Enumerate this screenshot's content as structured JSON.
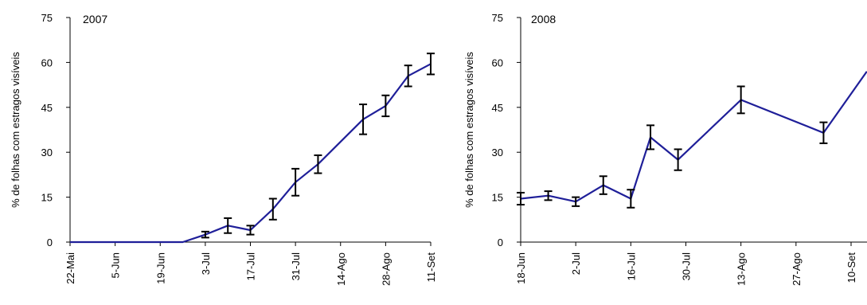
{
  "chart_data": [
    {
      "type": "line",
      "title": "",
      "annotation": "2007",
      "xlabel": "",
      "ylabel": "% de folhas com estragos visíveis",
      "ylim": [
        0,
        75
      ],
      "yticks": [
        0,
        15,
        30,
        45,
        60,
        75
      ],
      "xticks": [
        "22-Mai",
        "5-Jun",
        "19-Jun",
        "3-Jul",
        "17-Jul",
        "31-Jul",
        "14-Ago",
        "28-Ago",
        "11-Set"
      ],
      "grid": false,
      "series_color": "#1f1f99",
      "series": [
        {
          "x": [
            "22-Mai",
            "12-Jun",
            "26-Jun",
            "3-Jul",
            "10-Jul",
            "17-Jul",
            "24-Jul",
            "31-Jul",
            "7-Ago",
            "21-Ago",
            "28-Ago",
            "4-Set",
            "11-Set"
          ],
          "values": [
            0,
            0,
            0,
            2.5,
            5.5,
            4,
            11,
            20,
            26,
            41,
            45.5,
            55.5,
            59.5
          ],
          "errors": [
            null,
            null,
            null,
            1,
            2.5,
            1.5,
            3.5,
            4.5,
            3,
            5,
            3.5,
            3.5,
            3.5
          ]
        }
      ]
    },
    {
      "type": "line",
      "title": "",
      "annotation": "2008",
      "xlabel": "",
      "ylabel": "% de folhas com estragos visíveis",
      "ylim": [
        0,
        75
      ],
      "yticks": [
        0,
        15,
        30,
        45,
        60,
        75
      ],
      "xticks": [
        "18-Jun",
        "2-Jul",
        "16-Jul",
        "30-Jul",
        "13-Ago",
        "27-Ago",
        "10-Set"
      ],
      "grid": false,
      "series_color": "#1f1f99",
      "series": [
        {
          "x": [
            "18-Jun",
            "25-Jun",
            "2-Jul",
            "9-Jul",
            "16-Jul",
            "21-Jul",
            "28-Jul",
            "13-Ago",
            "3-Set",
            "14-Set"
          ],
          "values": [
            14.5,
            15.5,
            13.5,
            19,
            14.5,
            35,
            27.5,
            47.5,
            36.5,
            57
          ],
          "errors": [
            2,
            1.5,
            1.5,
            3,
            3,
            4,
            3.5,
            4.5,
            3.5,
            null
          ]
        }
      ]
    }
  ]
}
